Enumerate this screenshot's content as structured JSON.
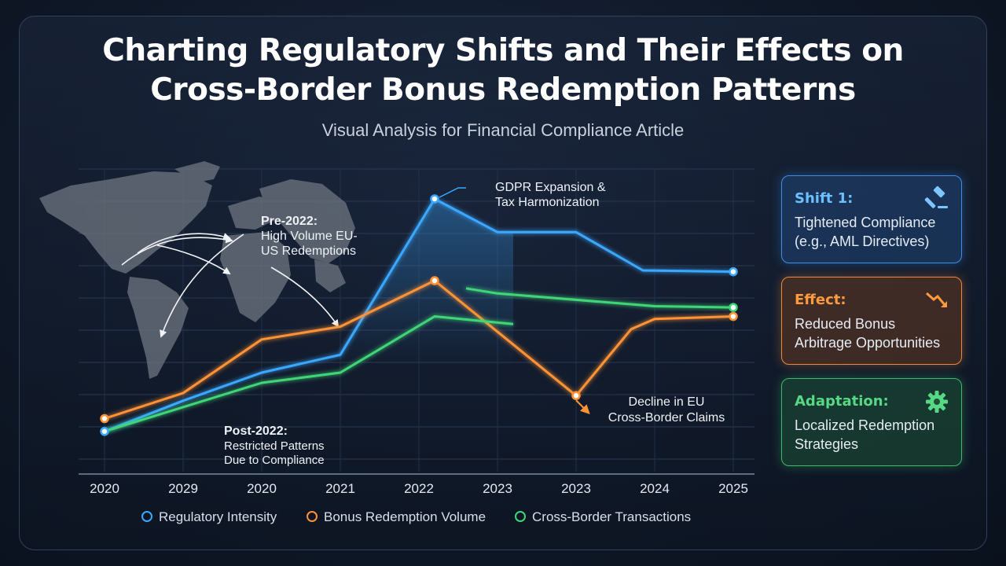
{
  "header": {
    "title_line1": "Charting Regulatory Shifts and Their Effects on",
    "title_line2": "Cross-Border Bonus Redemption Patterns",
    "subtitle": "Visual Analysis for Financial Compliance Article"
  },
  "chart_data": {
    "type": "line",
    "categories": [
      "2020",
      "2029",
      "2020",
      "2021",
      "2022",
      "2023",
      "2023",
      "2024",
      "2025"
    ],
    "ylim": [
      0,
      100
    ],
    "grid": true,
    "legend_position": "bottom",
    "series": [
      {
        "name": "Regulatory Intensity",
        "color": "#3aa8ff",
        "points": [
          [
            0,
            9
          ],
          [
            1,
            21
          ],
          [
            2,
            32
          ],
          [
            3,
            39
          ],
          [
            4.2,
            100
          ],
          [
            5,
            87
          ],
          [
            6,
            87
          ],
          [
            6.85,
            72
          ],
          [
            8,
            71.5
          ]
        ]
      },
      {
        "name": "Bonus Redemption Volume",
        "color": "#ff9236",
        "points": [
          [
            0,
            14
          ],
          [
            1,
            24
          ],
          [
            2,
            45
          ],
          [
            3,
            50
          ],
          [
            4.2,
            68
          ],
          [
            6,
            23
          ],
          [
            6.7,
            49
          ],
          [
            7,
            53
          ],
          [
            8,
            54
          ]
        ]
      },
      {
        "name": "Cross-Border Transactions",
        "color": "#3fd677",
        "points": [
          [
            0,
            9
          ],
          [
            2,
            28
          ],
          [
            3,
            32
          ],
          [
            4.2,
            54
          ],
          [
            5.2,
            51
          ]
        ]
      },
      {
        "name": "Cross-Border Transactions (continued)",
        "color": "#3fd677",
        "points": [
          [
            4.6,
            65
          ],
          [
            5,
            63
          ],
          [
            7,
            58
          ],
          [
            8,
            57.5
          ]
        ]
      }
    ],
    "annotations": [
      {
        "id": "pre2022",
        "line1": "Pre-2022:",
        "line2": "High Volume EU-",
        "line3": "US Redemptions"
      },
      {
        "id": "gdpr",
        "line1": "GDPR Expansion &",
        "line2": "Tax Harmonization"
      },
      {
        "id": "decline",
        "line1": "Decline in EU",
        "line2": "Cross-Border Claims"
      },
      {
        "id": "post2022",
        "line1": "Post-2022:",
        "line2": "Restricted Patterns",
        "line3": "Due to Compliance"
      }
    ]
  },
  "legend": [
    {
      "label": "Regulatory Intensity",
      "color": "#3aa8ff"
    },
    {
      "label": "Bonus Redemption Volume",
      "color": "#ff9236"
    },
    {
      "label": "Cross-Border Transactions",
      "color": "#3fd677"
    }
  ],
  "cards": [
    {
      "head": "Shift 1:",
      "line1": "Tightened Compliance",
      "line2": "(e.g., AML Directives)",
      "icon": "gavel-icon",
      "color": "#6cc0ff"
    },
    {
      "head": "Effect:",
      "line1": "Reduced Bonus",
      "line2": "Arbitrage Opportunities",
      "icon": "trend-down-icon",
      "color": "#ff9a3e"
    },
    {
      "head": "Adaptation:",
      "line1": "Localized Redemption",
      "line2": "Strategies",
      "icon": "gear-icon",
      "color": "#57d884"
    }
  ]
}
